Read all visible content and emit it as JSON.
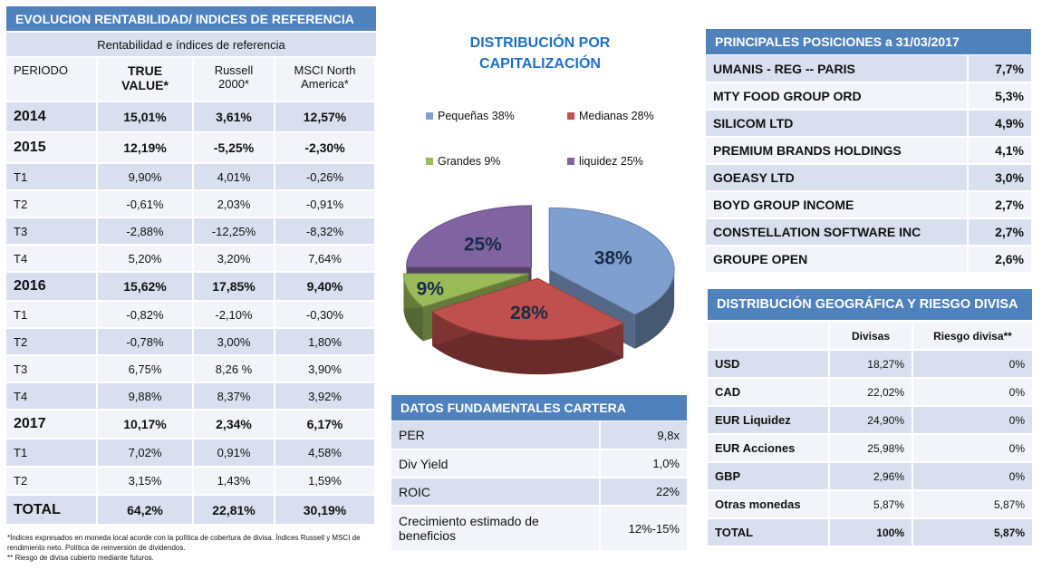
{
  "rentabilidad": {
    "title": "EVOLUCION RENTABILIDAD/ INDICES DE REFERENCIA",
    "subtitle": "Rentabilidad  e índices de referencia",
    "columns": [
      "PERIODO",
      "TRUE VALUE*",
      "Russell 2000*",
      "MSCI North America*"
    ],
    "rows": [
      {
        "periodo": "2014",
        "tv": "15,01%",
        "russell": "3,61%",
        "msci": "12,57%",
        "kind": "year"
      },
      {
        "periodo": "2015",
        "tv": "12,19%",
        "russell": "-5,25%",
        "msci": "-2,30%",
        "kind": "year"
      },
      {
        "periodo": "T1",
        "tv": "9,90%",
        "russell": "4,01%",
        "msci": "-0,26%",
        "kind": "q"
      },
      {
        "periodo": "T2",
        "tv": "-0,61%",
        "russell": "2,03%",
        "msci": "-0,91%",
        "kind": "q"
      },
      {
        "periodo": "T3",
        "tv": "-2,88%",
        "russell": "-12,25%",
        "msci": "-8,32%",
        "kind": "q"
      },
      {
        "periodo": "T4",
        "tv": "5,20%",
        "russell": "3,20%",
        "msci": "7,64%",
        "kind": "q"
      },
      {
        "periodo": "2016",
        "tv": "15,62%",
        "russell": "17,85%",
        "msci": "9,40%",
        "kind": "year"
      },
      {
        "periodo": "T1",
        "tv": "-0,82%",
        "russell": "-2,10%",
        "msci": "-0,30%",
        "kind": "q"
      },
      {
        "periodo": "T2",
        "tv": "-0,78%",
        "russell": "3,00%",
        "msci": "1,80%",
        "kind": "q"
      },
      {
        "periodo": "T3",
        "tv": "6,75%",
        "russell": "8,26 %",
        "msci": "3,90%",
        "kind": "q"
      },
      {
        "periodo": "T4",
        "tv": "9,88%",
        "russell": "8,37%",
        "msci": "3,92%",
        "kind": "q"
      },
      {
        "periodo": "2017",
        "tv": "10,17%",
        "russell": "2,34%",
        "msci": "6,17%",
        "kind": "year"
      },
      {
        "periodo": "T1",
        "tv": "7,02%",
        "russell": "0,91%",
        "msci": "4,58%",
        "kind": "q"
      },
      {
        "periodo": "T2",
        "tv": "3,15%",
        "russell": "1,43%",
        "msci": "1,59%",
        "kind": "q"
      },
      {
        "periodo": "TOTAL",
        "tv": "64,2%",
        "russell": "22,81%",
        "msci": "30,19%",
        "kind": "total"
      }
    ]
  },
  "footnotes": {
    "line1": "*Índices expresados en moneda local acorde con la política de cobertura de divisa. Índices Russell y MSCI  de rendimiento neto. Política de reinversión de dividendos.",
    "line2": "** Riesgo de divisa cubierto mediante futuros."
  },
  "chart_data": {
    "type": "pie",
    "title": "DISTRIBUCIÓN POR CAPITALIZACIÓN",
    "categories": [
      "Pequeñas 38%",
      "Medianas 28%",
      "Grandes  9%",
      "liquidez  25%"
    ],
    "values": [
      38,
      28,
      9,
      25
    ],
    "data_labels": [
      "38%",
      "28%",
      "9%",
      "25%"
    ],
    "colors": [
      "#7fa0cf",
      "#c0504d",
      "#9bbb59",
      "#8064a2"
    ],
    "legend": "top"
  },
  "fundamentales": {
    "title": "DATOS FUNDAMENTALES CARTERA",
    "rows": [
      {
        "label": "PER",
        "value": "9,8x"
      },
      {
        "label": "Div Yield",
        "value": "1,0%"
      },
      {
        "label": "ROIC",
        "value": "22%"
      },
      {
        "label": "Crecimiento estimado de beneficios",
        "value": "12%-15%"
      }
    ]
  },
  "posiciones": {
    "title": "PRINCIPALES POSICIONES a  31/03/2017",
    "rows": [
      {
        "name": "UMANIS - REG --  PARIS",
        "value": "7,7%"
      },
      {
        "name": "MTY FOOD GROUP ORD",
        "value": "5,3%"
      },
      {
        "name": "SILICOM LTD",
        "value": "4,9%"
      },
      {
        "name": "PREMIUM BRANDS HOLDINGS",
        "value": "4,1%"
      },
      {
        "name": "GOEASY LTD",
        "value": "3,0%"
      },
      {
        "name": "BOYD GROUP INCOME",
        "value": "2,7%"
      },
      {
        "name": "CONSTELLATION SOFTWARE INC",
        "value": "2,7%"
      },
      {
        "name": "GROUPE OPEN",
        "value": "2,6%"
      }
    ]
  },
  "geografica": {
    "title": "DISTRIBUCIÓN  GEOGRÁFICA Y RIESGO DIVISA",
    "columns": [
      "",
      "Divisas",
      "Riesgo divisa**"
    ],
    "rows": [
      {
        "name": "USD",
        "divisas": "18,27%",
        "riesgo": "0%"
      },
      {
        "name": "CAD",
        "divisas": "22,02%",
        "riesgo": "0%"
      },
      {
        "name": "EUR  Liquidez",
        "divisas": "24,90%",
        "riesgo": "0%"
      },
      {
        "name": "EUR  Acciones",
        "divisas": "25,98%",
        "riesgo": "0%"
      },
      {
        "name": "GBP",
        "divisas": "2,96%",
        "riesgo": "0%"
      },
      {
        "name": "Otras monedas",
        "divisas": "5,87%",
        "riesgo": "5,87%"
      },
      {
        "name": "TOTAL",
        "divisas": "100%",
        "riesgo": "5,87%"
      }
    ]
  }
}
